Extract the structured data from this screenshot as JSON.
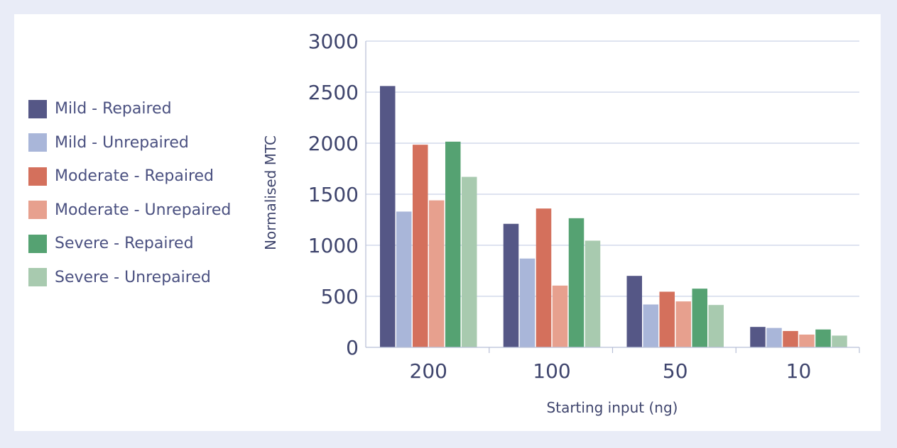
{
  "chart_data": {
    "type": "bar",
    "xlabel": "Starting input (ng)",
    "ylabel": "Normalised MTC",
    "ylim": [
      0,
      3000
    ],
    "yticks": [
      0,
      500,
      1000,
      1500,
      2000,
      2500,
      3000
    ],
    "grid": true,
    "legend_position": "left",
    "categories": [
      "200",
      "100",
      "50",
      "10"
    ],
    "series": [
      {
        "name": "Mild - Repaired",
        "color": "#555786",
        "values": [
          2560,
          1210,
          700,
          200
        ]
      },
      {
        "name": "Mild - Unrepaired",
        "color": "#a9b6d9",
        "values": [
          1330,
          870,
          420,
          190
        ]
      },
      {
        "name": "Moderate - Repaired",
        "color": "#d4705c",
        "values": [
          1985,
          1360,
          545,
          160
        ]
      },
      {
        "name": "Moderate - Unrepaired",
        "color": "#e7a08e",
        "values": [
          1440,
          605,
          450,
          125
        ]
      },
      {
        "name": "Severe - Repaired",
        "color": "#55a272",
        "values": [
          2015,
          1265,
          575,
          175
        ]
      },
      {
        "name": "Severe - Unrepaired",
        "color": "#a8caaf",
        "values": [
          1670,
          1045,
          415,
          115
        ]
      }
    ]
  }
}
